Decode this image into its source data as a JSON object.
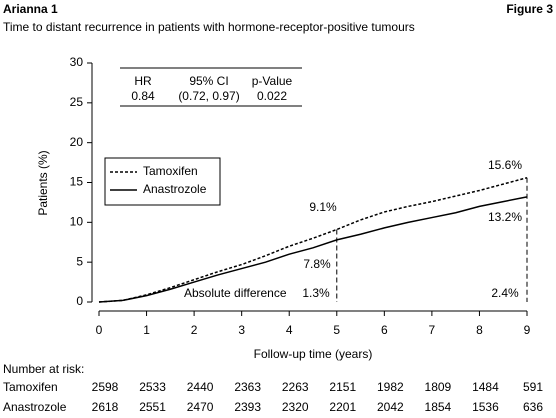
{
  "chart_data": {
    "type": "line",
    "header_left": "Arianna 1",
    "header_right": "Figure 3",
    "title": "Time to distant recurrence in patients with hormone-receptor-positive tumours",
    "x_label": "Follow-up time (years)",
    "y_label": "Patients (%)",
    "x": [
      0,
      0.5,
      1,
      1.5,
      2,
      2.5,
      3,
      3.5,
      4,
      4.5,
      5,
      5.5,
      6,
      6.5,
      7,
      7.5,
      8,
      8.5,
      9
    ],
    "series": [
      {
        "name": "Tamoxifen",
        "color": "#000000",
        "dashed": true,
        "values": [
          0,
          0.2,
          0.9,
          1.8,
          2.8,
          3.8,
          4.7,
          5.8,
          7.0,
          8.0,
          9.1,
          10.3,
          11.3,
          12.0,
          12.6,
          13.3,
          14.0,
          14.8,
          15.6
        ]
      },
      {
        "name": "Anastrozole",
        "color": "#000000",
        "dashed": false,
        "values": [
          0,
          0.2,
          0.8,
          1.6,
          2.5,
          3.4,
          4.2,
          5.0,
          6.0,
          6.8,
          7.8,
          8.5,
          9.3,
          10.0,
          10.6,
          11.2,
          12.0,
          12.6,
          13.2
        ]
      }
    ],
    "xlim": [
      0,
      9
    ],
    "xticks": [
      0,
      1,
      2,
      3,
      4,
      5,
      6,
      7,
      8,
      9
    ],
    "ylim": [
      0,
      30
    ],
    "yticks": [
      0,
      5,
      10,
      15,
      20,
      25,
      30
    ],
    "grid": false,
    "reference_x": [
      5,
      9
    ],
    "annotations": [
      "9.1%",
      "7.8%",
      "15.6%",
      "13.2%",
      "Absolute difference",
      "1.3%",
      "2.4%"
    ],
    "stats": {
      "headers": [
        "HR",
        "95% CI",
        "p-Value"
      ],
      "values": [
        0.84,
        "(0.72, 0.97)",
        0.022
      ]
    },
    "risk_table": {
      "title": "Number at risk:",
      "rows": [
        {
          "name": "Tamoxifen",
          "values": [
            2598,
            2533,
            2440,
            2363,
            2263,
            2151,
            1982,
            1809,
            1484,
            591
          ]
        },
        {
          "name": "Anastrozole",
          "values": [
            2618,
            2551,
            2470,
            2393,
            2320,
            2201,
            2042,
            1854,
            1536,
            636
          ]
        }
      ]
    }
  }
}
